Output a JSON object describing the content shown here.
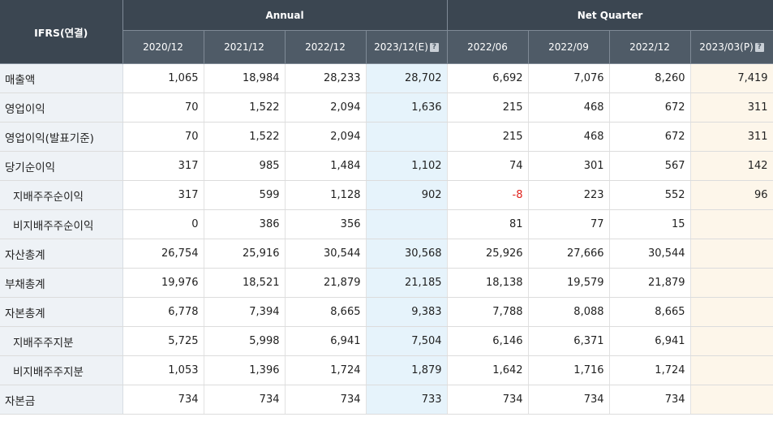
{
  "header": {
    "corner_label": "IFRS(연결)",
    "groups": [
      "Annual",
      "Net Quarter"
    ],
    "periods": [
      "2020/12",
      "2021/12",
      "2022/12",
      "2023/12(E)",
      "2022/06",
      "2022/09",
      "2022/12",
      "2023/03(P)"
    ],
    "help_icon_glyph": "?"
  },
  "rows": [
    {
      "label": "매출액",
      "sub": false,
      "values": [
        "1,065",
        "18,984",
        "28,233",
        "28,702",
        "6,692",
        "7,076",
        "8,260",
        "7,419"
      ]
    },
    {
      "label": "영업이익",
      "sub": false,
      "values": [
        "70",
        "1,522",
        "2,094",
        "1,636",
        "215",
        "468",
        "672",
        "311"
      ]
    },
    {
      "label": "영업이익(발표기준)",
      "sub": false,
      "values": [
        "70",
        "1,522",
        "2,094",
        "",
        "215",
        "468",
        "672",
        "311"
      ]
    },
    {
      "label": "당기순이익",
      "sub": false,
      "values": [
        "317",
        "985",
        "1,484",
        "1,102",
        "74",
        "301",
        "567",
        "142"
      ]
    },
    {
      "label": "지배주주순이익",
      "sub": true,
      "values": [
        "317",
        "599",
        "1,128",
        "902",
        "-8",
        "223",
        "552",
        "96"
      ]
    },
    {
      "label": "비지배주주순이익",
      "sub": true,
      "values": [
        "0",
        "386",
        "356",
        "",
        "81",
        "77",
        "15",
        ""
      ]
    },
    {
      "label": "자산총계",
      "sub": false,
      "values": [
        "26,754",
        "25,916",
        "30,544",
        "30,568",
        "25,926",
        "27,666",
        "30,544",
        ""
      ]
    },
    {
      "label": "부채총계",
      "sub": false,
      "values": [
        "19,976",
        "18,521",
        "21,879",
        "21,185",
        "18,138",
        "19,579",
        "21,879",
        ""
      ]
    },
    {
      "label": "자본총계",
      "sub": false,
      "values": [
        "6,778",
        "7,394",
        "8,665",
        "9,383",
        "7,788",
        "8,088",
        "8,665",
        ""
      ]
    },
    {
      "label": "지배주주지분",
      "sub": true,
      "values": [
        "5,725",
        "5,998",
        "6,941",
        "7,504",
        "6,146",
        "6,371",
        "6,941",
        ""
      ]
    },
    {
      "label": "비지배주주지분",
      "sub": true,
      "values": [
        "1,053",
        "1,396",
        "1,724",
        "1,879",
        "1,642",
        "1,716",
        "1,724",
        ""
      ]
    },
    {
      "label": "자본금",
      "sub": false,
      "values": [
        "734",
        "734",
        "734",
        "733",
        "734",
        "734",
        "734",
        ""
      ]
    }
  ]
}
